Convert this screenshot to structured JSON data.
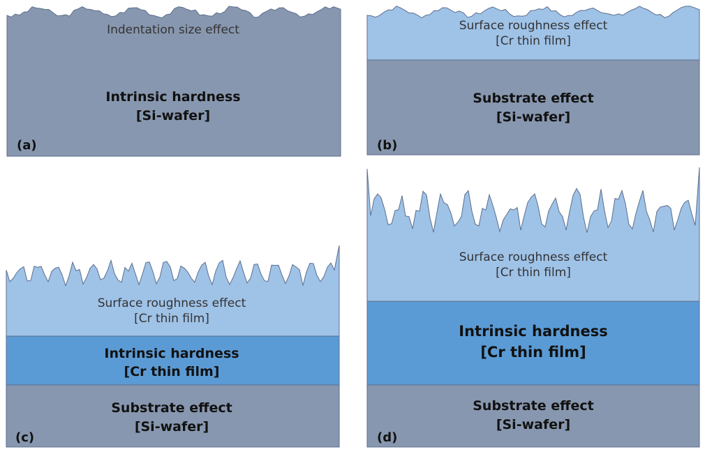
{
  "colors": {
    "substrate": "#8797AF",
    "film": "#9FC2E7",
    "hardness": "#5B9BD5",
    "outline": "#5C6E8C"
  },
  "panels": {
    "a": {
      "label": "(a)",
      "top_text": "Indentation size effect",
      "main_line1": "Intrinsic hardness",
      "main_line2": "[Si-wafer]"
    },
    "b": {
      "label": "(b)",
      "film_line1": "Surface roughness effect",
      "film_line2": "[Cr thin film]",
      "sub_line1": "Substrate effect",
      "sub_line2": "[Si-wafer]"
    },
    "c": {
      "label": "(c)",
      "film_line1": "Surface roughness effect",
      "film_line2": "[Cr thin film]",
      "hard_line1": "Intrinsic hardness",
      "hard_line2": "[Cr thin film]",
      "sub_line1": "Substrate effect",
      "sub_line2": "[Si-wafer]"
    },
    "d": {
      "label": "(d)",
      "film_line1": "Surface roughness effect",
      "film_line2": "[Cr thin film]",
      "hard_line1": "Intrinsic hardness",
      "hard_line2": "[Cr thin film]",
      "sub_line1": "Substrate effect",
      "sub_line2": "[Si-wafer]"
    }
  }
}
